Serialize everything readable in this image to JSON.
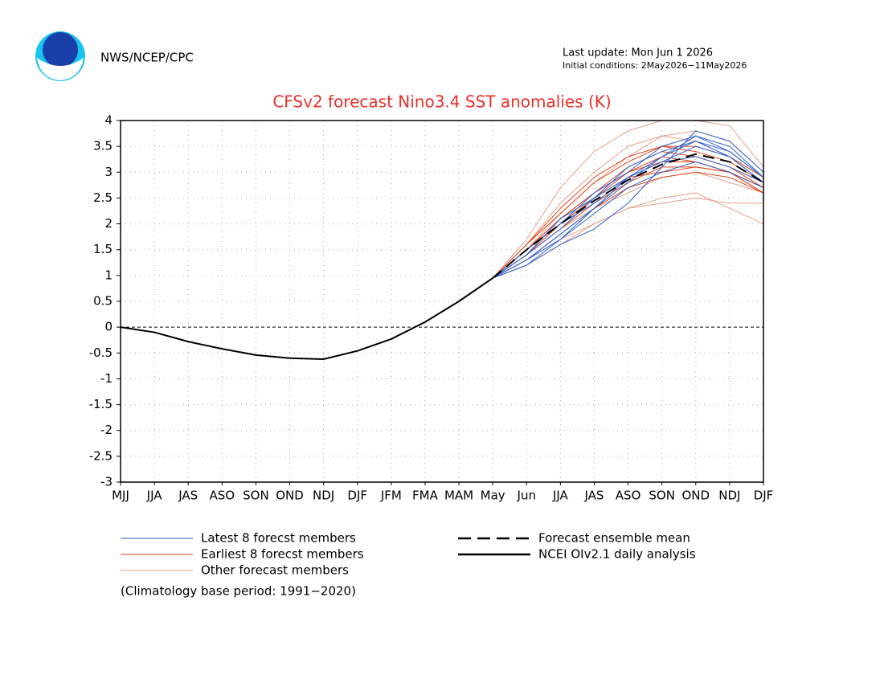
{
  "header": {
    "agency": "NWS/NCEP/CPC",
    "last_update": "Last update: Mon Jun 1 2026",
    "initial_conditions": "Initial conditions: 2May2026−11May2026"
  },
  "chart_data": {
    "type": "line",
    "title": "CFSv2 forecast Nino3.4 SST anomalies (K)",
    "categories": [
      "MJJ",
      "JJA",
      "JAS",
      "ASO",
      "SON",
      "OND",
      "NDJ",
      "DJF",
      "JFM",
      "FMA",
      "MAM",
      "May",
      "Jun",
      "JJA",
      "JAS",
      "ASO",
      "SON",
      "OND",
      "NDJ",
      "DJF"
    ],
    "ylim": [
      -3,
      4
    ],
    "yticks": [
      -3,
      -2.5,
      -2,
      -1.5,
      -1,
      -0.5,
      0,
      0.5,
      1,
      1.5,
      2,
      2.5,
      3,
      3.5,
      4
    ],
    "grid": true,
    "series": [
      {
        "name": "Latest 8 forecst members",
        "color": "#2f62d0",
        "members": [
          [
            null,
            null,
            null,
            null,
            null,
            null,
            null,
            null,
            null,
            null,
            null,
            0.95,
            1.3,
            1.8,
            2.3,
            2.9,
            3.3,
            3.7,
            3.5,
            2.9
          ],
          [
            null,
            null,
            null,
            null,
            null,
            null,
            null,
            null,
            null,
            null,
            null,
            0.95,
            1.2,
            1.6,
            1.9,
            2.4,
            3.1,
            3.8,
            3.6,
            3.0
          ],
          [
            null,
            null,
            null,
            null,
            null,
            null,
            null,
            null,
            null,
            null,
            null,
            0.95,
            1.4,
            1.9,
            2.5,
            3.1,
            3.4,
            3.6,
            3.3,
            2.8
          ],
          [
            null,
            null,
            null,
            null,
            null,
            null,
            null,
            null,
            null,
            null,
            null,
            0.95,
            1.5,
            2.0,
            2.6,
            3.0,
            3.5,
            3.7,
            3.4,
            2.9
          ],
          [
            null,
            null,
            null,
            null,
            null,
            null,
            null,
            null,
            null,
            null,
            null,
            0.95,
            1.3,
            1.7,
            2.2,
            2.7,
            3.0,
            3.2,
            3.0,
            2.7
          ],
          [
            null,
            null,
            null,
            null,
            null,
            null,
            null,
            null,
            null,
            null,
            null,
            0.95,
            1.4,
            2.1,
            2.5,
            2.9,
            3.2,
            3.3,
            3.1,
            2.8
          ],
          [
            null,
            null,
            null,
            null,
            null,
            null,
            null,
            null,
            null,
            null,
            null,
            0.95,
            1.2,
            1.7,
            2.3,
            2.8,
            3.3,
            3.6,
            3.4,
            2.9
          ],
          [
            null,
            null,
            null,
            null,
            null,
            null,
            null,
            null,
            null,
            null,
            null,
            0.95,
            1.5,
            2.0,
            2.4,
            2.9,
            3.2,
            3.5,
            3.3,
            2.8
          ]
        ]
      },
      {
        "name": "Earliest 8 forecst members",
        "color": "#e0451a",
        "members": [
          [
            null,
            null,
            null,
            null,
            null,
            null,
            null,
            null,
            null,
            null,
            null,
            0.95,
            1.6,
            2.2,
            2.8,
            3.2,
            3.5,
            3.4,
            3.2,
            2.8
          ],
          [
            null,
            null,
            null,
            null,
            null,
            null,
            null,
            null,
            null,
            null,
            null,
            0.95,
            1.5,
            2.1,
            2.6,
            3.0,
            3.2,
            3.2,
            3.0,
            2.7
          ],
          [
            null,
            null,
            null,
            null,
            null,
            null,
            null,
            null,
            null,
            null,
            null,
            0.95,
            1.4,
            1.9,
            2.4,
            2.8,
            3.1,
            3.1,
            3.0,
            2.6
          ],
          [
            null,
            null,
            null,
            null,
            null,
            null,
            null,
            null,
            null,
            null,
            null,
            0.95,
            1.6,
            2.3,
            2.9,
            3.3,
            3.5,
            3.5,
            3.3,
            2.9
          ],
          [
            null,
            null,
            null,
            null,
            null,
            null,
            null,
            null,
            null,
            null,
            null,
            0.95,
            1.3,
            1.8,
            2.3,
            2.7,
            2.9,
            3.0,
            2.9,
            2.6
          ],
          [
            null,
            null,
            null,
            null,
            null,
            null,
            null,
            null,
            null,
            null,
            null,
            0.95,
            1.5,
            2.1,
            2.6,
            3.1,
            3.4,
            3.3,
            3.1,
            2.7
          ],
          [
            null,
            null,
            null,
            null,
            null,
            null,
            null,
            null,
            null,
            null,
            null,
            0.95,
            1.5,
            2.0,
            2.5,
            2.9,
            3.0,
            3.1,
            3.0,
            2.7
          ],
          [
            null,
            null,
            null,
            null,
            null,
            null,
            null,
            null,
            null,
            null,
            null,
            0.95,
            1.4,
            2.0,
            2.5,
            3.0,
            3.3,
            3.2,
            3.0,
            2.6
          ]
        ]
      },
      {
        "name": "Other forecast members",
        "color": "#e6a08a",
        "members": [
          [
            null,
            null,
            null,
            null,
            null,
            null,
            null,
            null,
            null,
            null,
            null,
            0.95,
            1.7,
            2.7,
            3.4,
            3.8,
            4.0,
            4.0,
            3.9,
            3.1
          ],
          [
            null,
            null,
            null,
            null,
            null,
            null,
            null,
            null,
            null,
            null,
            null,
            0.95,
            1.3,
            1.7,
            2.0,
            2.3,
            2.4,
            2.5,
            2.4,
            2.4
          ],
          [
            null,
            null,
            null,
            null,
            null,
            null,
            null,
            null,
            null,
            null,
            null,
            0.95,
            1.5,
            2.2,
            2.8,
            3.3,
            3.7,
            3.8,
            3.6,
            3.0
          ],
          [
            null,
            null,
            null,
            null,
            null,
            null,
            null,
            null,
            null,
            null,
            null,
            0.95,
            1.2,
            1.6,
            2.0,
            2.3,
            2.5,
            2.6,
            2.3,
            2.0
          ],
          [
            null,
            null,
            null,
            null,
            null,
            null,
            null,
            null,
            null,
            null,
            null,
            0.95,
            1.4,
            1.9,
            2.3,
            2.6,
            2.9,
            3.0,
            2.8,
            2.6
          ],
          [
            null,
            null,
            null,
            null,
            null,
            null,
            null,
            null,
            null,
            null,
            null,
            0.95,
            1.6,
            2.4,
            3.0,
            3.5,
            3.7,
            3.6,
            3.3,
            2.9
          ]
        ]
      },
      {
        "name": "Forecast ensemble mean",
        "color": "#000000",
        "dashed": true,
        "values": [
          null,
          null,
          null,
          null,
          null,
          null,
          null,
          null,
          null,
          null,
          null,
          0.95,
          1.5,
          2.0,
          2.45,
          2.85,
          3.15,
          3.35,
          3.2,
          2.8
        ]
      },
      {
        "name": "NCEI OIv2.1 daily analysis",
        "color": "#000000",
        "dashed": false,
        "values": [
          0,
          -0.1,
          -0.28,
          -0.42,
          -0.54,
          -0.6,
          -0.62,
          -0.46,
          -0.23,
          0.1,
          0.5,
          0.95,
          null,
          null,
          null,
          null,
          null,
          null,
          null,
          null
        ]
      }
    ],
    "note": "(Climatology base period: 1991−2020)"
  }
}
